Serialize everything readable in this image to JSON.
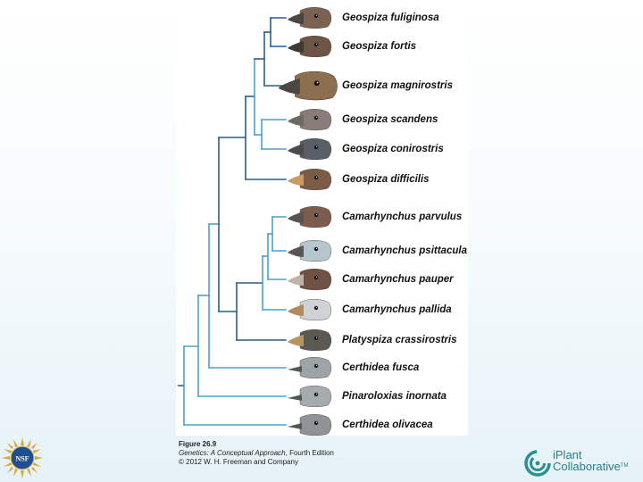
{
  "figure": {
    "species": [
      {
        "name": "Geospiza fuliginosa",
        "head": "#7a6252",
        "beak": "#4b4542"
      },
      {
        "name": "Geospiza fortis",
        "head": "#6d5546",
        "beak": "#3f3a36"
      },
      {
        "name": "Geospiza magnirostris",
        "head": "#8c6f4e",
        "beak": "#4d4540"
      },
      {
        "name": "Geospiza scandens",
        "head": "#8a7c78",
        "beak": "#6e6864"
      },
      {
        "name": "Geospiza conirostris",
        "head": "#595d66",
        "beak": "#4c4a4a"
      },
      {
        "name": "Geospiza difficilis",
        "head": "#7b5c47",
        "beak": "#c79b62"
      },
      {
        "name": "Camarhynchus parvulus",
        "head": "#7b5c4d",
        "beak": "#5a5250"
      },
      {
        "name": "Camarhynchus psittacula",
        "head": "#b7c6cd",
        "beak": "#5a5656"
      },
      {
        "name": "Camarhynchus pauper",
        "head": "#6f5244",
        "beak": "#c0b4a8"
      },
      {
        "name": "Camarhynchus pallida",
        "head": "#cfd3d6",
        "beak": "#b08a5c"
      },
      {
        "name": "Platyspiza crassirostris",
        "head": "#5b5a52",
        "beak": "#b89460"
      },
      {
        "name": "Certhidea fusca",
        "head": "#9da4a8",
        "beak": "#555"
      },
      {
        "name": "Pinaroloxias inornata",
        "head": "#a6abae",
        "beak": "#555"
      },
      {
        "name": "Certhidea olivacea",
        "head": "#8f9397",
        "beak": "#555"
      }
    ],
    "branch_colors": {
      "dark": "#2c5f8a",
      "light": "#4aa3c9"
    }
  },
  "caption": {
    "figure_number": "Figure 26.9",
    "book_title": "Genetics: A Conceptual Approach",
    "edition": ", Fourth Edition",
    "copyright": "© 2012 W. H. Freeman and Company"
  },
  "logos": {
    "nsf": "NSF",
    "iplant_line1": "iPlant",
    "iplant_line2": "Collaborative",
    "iplant_tm": "TM"
  }
}
